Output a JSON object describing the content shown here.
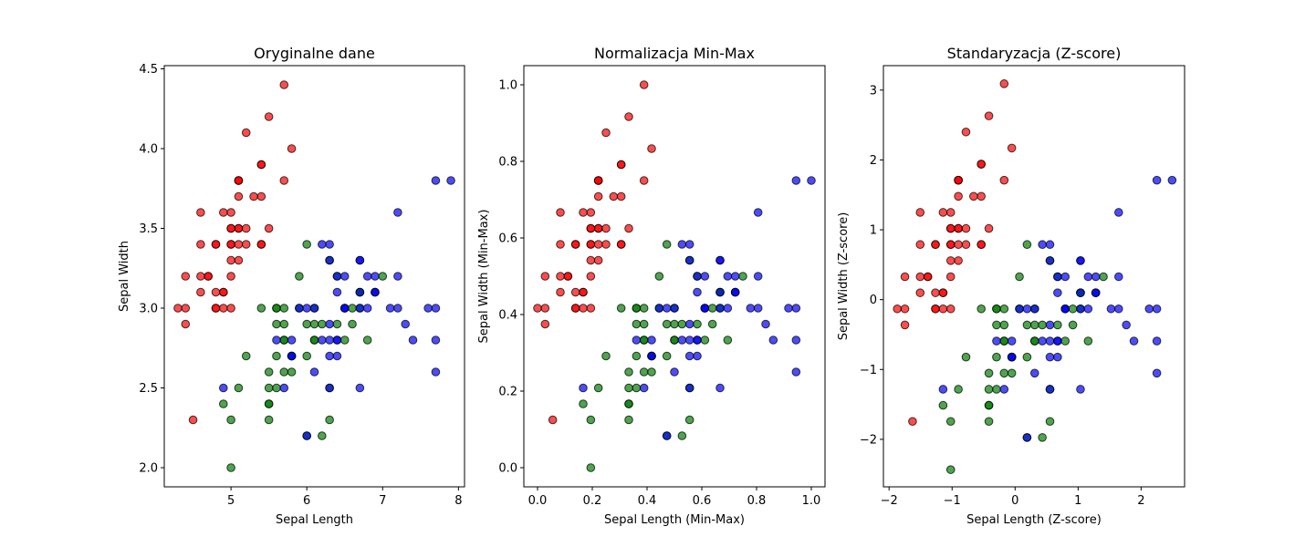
{
  "figure": {
    "background": "#ffffff",
    "marker_edge": "#000000",
    "marker_alpha": 0.7
  },
  "classes": [
    {
      "key": "setosa",
      "color": "#ff0000"
    },
    {
      "key": "versicolor",
      "color": "#008000"
    },
    {
      "key": "virginica",
      "color": "#0000ff"
    }
  ],
  "chart_data": [
    {
      "type": "scatter",
      "title": "Oryginalne dane",
      "xlabel": "Sepal Length",
      "ylabel": "Sepal Width",
      "xlim": [
        4.12,
        8.08
      ],
      "ylim": [
        1.88,
        4.52
      ],
      "xticks": [
        5,
        6,
        7,
        8
      ],
      "xtick_labels": [
        "5",
        "6",
        "7",
        "8"
      ],
      "yticks": [
        2.0,
        2.5,
        3.0,
        3.5,
        4.0,
        4.5
      ],
      "ytick_labels": [
        "2.0",
        "2.5",
        "3.0",
        "3.5",
        "4.0",
        "4.5"
      ],
      "grid": false,
      "transform": "none"
    },
    {
      "type": "scatter",
      "title": "Normalizacja Min-Max",
      "xlabel": "Sepal Length (Min-Max)",
      "ylabel": "Sepal Width (Min-Max)",
      "xlim": [
        -0.05,
        1.05
      ],
      "ylim": [
        -0.05,
        1.05
      ],
      "xticks": [
        0.0,
        0.2,
        0.4,
        0.6,
        0.8,
        1.0
      ],
      "xtick_labels": [
        "0.0",
        "0.2",
        "0.4",
        "0.6",
        "0.8",
        "1.0"
      ],
      "yticks": [
        0.0,
        0.2,
        0.4,
        0.6,
        0.8,
        1.0
      ],
      "ytick_labels": [
        "0.0",
        "0.2",
        "0.4",
        "0.6",
        "0.8",
        "1.0"
      ],
      "grid": false,
      "transform": "minmax"
    },
    {
      "type": "scatter",
      "title": "Standaryzacja (Z-score)",
      "xlabel": "Sepal Length (Z-score)",
      "ylabel": "Sepal Width (Z-score)",
      "xlim": [
        -2.09,
        2.69
      ],
      "ylim": [
        -2.68,
        3.35
      ],
      "xticks": [
        -2,
        -1,
        0,
        1,
        2
      ],
      "xtick_labels": [
        "−2",
        "−1",
        "0",
        "1",
        "2"
      ],
      "yticks": [
        -2,
        -1,
        0,
        1,
        2,
        3
      ],
      "ytick_labels": [
        "−2",
        "−1",
        "0",
        "1",
        "2",
        "3"
      ],
      "grid": false,
      "transform": "zscore"
    }
  ],
  "raw_data": {
    "setosa": [
      [
        5.1,
        3.5
      ],
      [
        4.9,
        3.0
      ],
      [
        4.7,
        3.2
      ],
      [
        4.6,
        3.1
      ],
      [
        5.0,
        3.6
      ],
      [
        5.4,
        3.9
      ],
      [
        4.6,
        3.4
      ],
      [
        5.0,
        3.4
      ],
      [
        4.4,
        2.9
      ],
      [
        4.9,
        3.1
      ],
      [
        5.4,
        3.7
      ],
      [
        4.8,
        3.4
      ],
      [
        4.8,
        3.0
      ],
      [
        4.3,
        3.0
      ],
      [
        5.8,
        4.0
      ],
      [
        5.7,
        4.4
      ],
      [
        5.4,
        3.9
      ],
      [
        5.1,
        3.5
      ],
      [
        5.7,
        3.8
      ],
      [
        5.1,
        3.8
      ],
      [
        5.4,
        3.4
      ],
      [
        5.1,
        3.7
      ],
      [
        4.6,
        3.6
      ],
      [
        5.1,
        3.3
      ],
      [
        4.8,
        3.4
      ],
      [
        5.0,
        3.0
      ],
      [
        5.0,
        3.4
      ],
      [
        5.2,
        3.5
      ],
      [
        5.2,
        3.4
      ],
      [
        4.7,
        3.2
      ],
      [
        4.8,
        3.1
      ],
      [
        5.4,
        3.4
      ],
      [
        5.2,
        4.1
      ],
      [
        5.5,
        4.2
      ],
      [
        4.9,
        3.1
      ],
      [
        5.0,
        3.2
      ],
      [
        5.5,
        3.5
      ],
      [
        4.9,
        3.6
      ],
      [
        4.4,
        3.0
      ],
      [
        5.1,
        3.4
      ],
      [
        5.0,
        3.5
      ],
      [
        4.5,
        2.3
      ],
      [
        4.4,
        3.2
      ],
      [
        5.0,
        3.5
      ],
      [
        5.1,
        3.8
      ],
      [
        4.8,
        3.0
      ],
      [
        5.1,
        3.8
      ],
      [
        4.6,
        3.2
      ],
      [
        5.3,
        3.7
      ],
      [
        5.0,
        3.3
      ]
    ],
    "versicolor": [
      [
        7.0,
        3.2
      ],
      [
        6.4,
        3.2
      ],
      [
        6.9,
        3.1
      ],
      [
        5.5,
        2.3
      ],
      [
        6.5,
        2.8
      ],
      [
        5.7,
        2.8
      ],
      [
        6.3,
        3.3
      ],
      [
        4.9,
        2.4
      ],
      [
        6.6,
        2.9
      ],
      [
        5.2,
        2.7
      ],
      [
        5.0,
        2.0
      ],
      [
        5.9,
        3.0
      ],
      [
        6.0,
        2.2
      ],
      [
        6.1,
        2.9
      ],
      [
        5.6,
        2.9
      ],
      [
        6.7,
        3.1
      ],
      [
        5.6,
        3.0
      ],
      [
        5.8,
        2.7
      ],
      [
        6.2,
        2.2
      ],
      [
        5.6,
        2.5
      ],
      [
        5.9,
        3.2
      ],
      [
        6.1,
        2.8
      ],
      [
        6.3,
        2.5
      ],
      [
        6.1,
        2.8
      ],
      [
        6.4,
        2.9
      ],
      [
        6.6,
        3.0
      ],
      [
        6.8,
        2.8
      ],
      [
        6.7,
        3.0
      ],
      [
        6.0,
        2.9
      ],
      [
        5.7,
        2.6
      ],
      [
        5.5,
        2.4
      ],
      [
        5.5,
        2.4
      ],
      [
        5.8,
        2.7
      ],
      [
        6.0,
        2.7
      ],
      [
        5.4,
        3.0
      ],
      [
        6.0,
        3.4
      ],
      [
        6.7,
        3.1
      ],
      [
        6.3,
        2.3
      ],
      [
        5.6,
        3.0
      ],
      [
        5.5,
        2.5
      ],
      [
        5.5,
        2.6
      ],
      [
        6.1,
        3.0
      ],
      [
        5.8,
        2.6
      ],
      [
        5.0,
        2.3
      ],
      [
        5.6,
        2.7
      ],
      [
        5.7,
        3.0
      ],
      [
        5.7,
        2.9
      ],
      [
        6.2,
        2.9
      ],
      [
        5.1,
        2.5
      ],
      [
        5.7,
        2.8
      ]
    ],
    "virginica": [
      [
        6.3,
        3.3
      ],
      [
        5.8,
        2.7
      ],
      [
        7.1,
        3.0
      ],
      [
        6.3,
        2.9
      ],
      [
        6.5,
        3.0
      ],
      [
        7.6,
        3.0
      ],
      [
        4.9,
        2.5
      ],
      [
        7.3,
        2.9
      ],
      [
        6.7,
        2.5
      ],
      [
        7.2,
        3.6
      ],
      [
        6.5,
        3.2
      ],
      [
        6.4,
        2.7
      ],
      [
        6.8,
        3.0
      ],
      [
        5.7,
        2.5
      ],
      [
        5.8,
        2.8
      ],
      [
        6.4,
        3.2
      ],
      [
        6.5,
        3.0
      ],
      [
        7.7,
        3.8
      ],
      [
        7.7,
        2.6
      ],
      [
        6.0,
        2.2
      ],
      [
        6.9,
        3.2
      ],
      [
        5.6,
        2.8
      ],
      [
        7.7,
        2.8
      ],
      [
        6.3,
        2.7
      ],
      [
        6.7,
        3.3
      ],
      [
        7.2,
        3.2
      ],
      [
        6.2,
        2.8
      ],
      [
        6.1,
        3.0
      ],
      [
        6.4,
        2.8
      ],
      [
        7.2,
        3.0
      ],
      [
        7.4,
        2.8
      ],
      [
        7.9,
        3.8
      ],
      [
        6.4,
        2.8
      ],
      [
        6.3,
        2.8
      ],
      [
        6.1,
        2.6
      ],
      [
        7.7,
        3.0
      ],
      [
        6.3,
        3.4
      ],
      [
        6.4,
        3.1
      ],
      [
        6.0,
        3.0
      ],
      [
        6.9,
        3.1
      ],
      [
        6.7,
        3.1
      ],
      [
        6.9,
        3.1
      ],
      [
        5.8,
        2.7
      ],
      [
        6.8,
        3.2
      ],
      [
        6.7,
        3.3
      ],
      [
        6.7,
        3.0
      ],
      [
        6.3,
        2.5
      ],
      [
        6.5,
        3.0
      ],
      [
        6.2,
        3.4
      ],
      [
        5.9,
        3.0
      ]
    ]
  }
}
